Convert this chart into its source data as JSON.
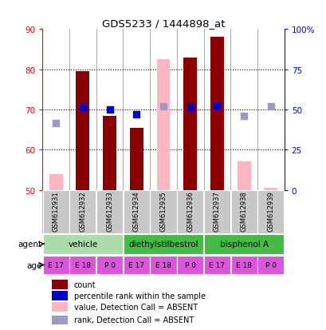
{
  "title": "GDS5233 / 1444898_at",
  "samples": [
    "GSM612931",
    "GSM612932",
    "GSM612933",
    "GSM612934",
    "GSM612935",
    "GSM612936",
    "GSM612937",
    "GSM612938",
    "GSM612939"
  ],
  "bar_values": [
    null,
    79.5,
    68.5,
    65.5,
    null,
    83.0,
    88.0,
    null,
    null
  ],
  "bar_absent_values": [
    54.0,
    null,
    null,
    null,
    82.5,
    null,
    null,
    57.0,
    50.5
  ],
  "rank_values": [
    null,
    70.5,
    70.0,
    68.8,
    null,
    70.5,
    71.0,
    null,
    null
  ],
  "rank_absent_values": [
    66.7,
    null,
    null,
    null,
    70.8,
    null,
    null,
    68.5,
    70.7
  ],
  "bar_color": "#8B0000",
  "bar_absent_color": "#FFB6C1",
  "rank_color": "#0000CC",
  "rank_absent_color": "#9999CC",
  "ylim_left": [
    50,
    90
  ],
  "ylim_right": [
    0,
    100
  ],
  "yticks_left": [
    50,
    60,
    70,
    80,
    90
  ],
  "yticks_right": [
    0,
    25,
    50,
    75,
    100
  ],
  "yticklabels_right": [
    "0",
    "25",
    "50",
    "75",
    "100%"
  ],
  "age_labels": [
    "E 17",
    "E 18",
    "P 0",
    "E 17",
    "E 18",
    "P 0",
    "E 17",
    "E 18",
    "P 0"
  ],
  "age_color": "#DD55DD",
  "agent_label": "agent",
  "age_label": "age",
  "agent_groups": [
    {
      "label": "vehicle",
      "start": 0,
      "end": 2,
      "color": "#AADDAA"
    },
    {
      "label": "diethylstilbestrol",
      "start": 3,
      "end": 5,
      "color": "#44BB44"
    },
    {
      "label": "bisphenol A",
      "start": 6,
      "end": 8,
      "color": "#44BB44"
    }
  ],
  "legend_items": [
    {
      "label": "count",
      "color": "#8B0000"
    },
    {
      "label": "percentile rank within the sample",
      "color": "#0000CC"
    },
    {
      "label": "value, Detection Call = ABSENT",
      "color": "#FFB6C1"
    },
    {
      "label": "rank, Detection Call = ABSENT",
      "color": "#9999CC"
    }
  ]
}
